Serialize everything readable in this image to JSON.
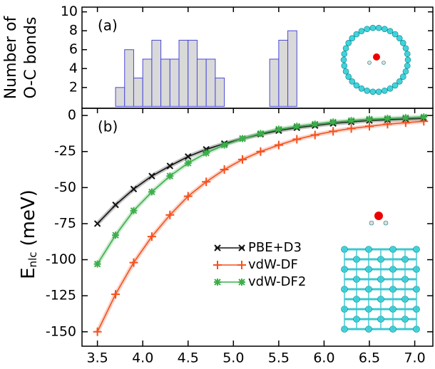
{
  "chart_data": [
    {
      "type": "histogram",
      "annotation": "(a)",
      "ylabel": [
        "Number of",
        "O-C bonds"
      ],
      "bins": [
        3.7,
        3.8,
        3.9,
        4.0,
        4.1,
        4.2,
        4.3,
        4.4,
        4.5,
        4.6,
        4.7,
        4.8,
        4.9,
        5.0,
        5.1,
        5.2,
        5.3,
        5.4,
        5.5,
        5.6,
        5.7
      ],
      "values": [
        2,
        6,
        3,
        5,
        7,
        5,
        5,
        7,
        7,
        5,
        5,
        3,
        0,
        0,
        0,
        0,
        0,
        5,
        7,
        8
      ],
      "color": "#d9d9d9",
      "edgecolor": "#4a4ad8",
      "xlim": [
        3.33,
        7.2
      ],
      "ylim": [
        -0.2,
        10.5
      ],
      "yticks": [
        2,
        4,
        6,
        8,
        10
      ]
    },
    {
      "type": "line",
      "annotation": "(b)",
      "ylabel": {
        "main": "E",
        "sub": "nlc",
        "unit": "(meV)"
      },
      "x": [
        3.5,
        3.7,
        3.9,
        4.1,
        4.3,
        4.5,
        4.7,
        4.9,
        5.1,
        5.3,
        5.5,
        5.7,
        5.9,
        6.1,
        6.3,
        6.5,
        6.7,
        6.9,
        7.1
      ],
      "series": [
        {
          "name": "PBE+D3",
          "color": "#111111",
          "marker": "x",
          "values": [
            -75,
            -62,
            -51,
            -42,
            -35,
            -28.5,
            -23.5,
            -19.5,
            -16,
            -13,
            -10.5,
            -8.5,
            -7,
            -5.5,
            -4.5,
            -3.5,
            -3,
            -2.5,
            -2
          ]
        },
        {
          "name": "vdW-DF",
          "color": "#f4511e",
          "marker": "+",
          "values": [
            -150,
            -124,
            -102,
            -84,
            -69,
            -56,
            -46,
            -37.5,
            -30.5,
            -25,
            -20.5,
            -16.5,
            -13.5,
            -11,
            -9,
            -7.5,
            -6,
            -5,
            -4
          ]
        },
        {
          "name": "vdW-DF2",
          "color": "#3cae4a",
          "marker": "*",
          "values": [
            -103,
            -83,
            -66,
            -53,
            -42,
            -33,
            -26,
            -20.5,
            -16,
            -12.5,
            -9.5,
            -7.5,
            -6,
            -4.5,
            -3.5,
            -2.5,
            -2,
            -1.5,
            -1
          ]
        }
      ],
      "xlim": [
        3.33,
        7.2
      ],
      "ylim": [
        -160,
        5
      ],
      "xticks": [
        3.5,
        {
          "value": 4,
          "label": "4.0"
        },
        4.5,
        {
          "value": 5,
          "label": "5.0"
        },
        5.5,
        {
          "value": 6,
          "label": "6.0"
        },
        6.5,
        {
          "value": 7,
          "label": "7.0"
        }
      ],
      "yticks": [
        0,
        -25,
        -50,
        -75,
        -100,
        -125,
        -150
      ]
    }
  ]
}
